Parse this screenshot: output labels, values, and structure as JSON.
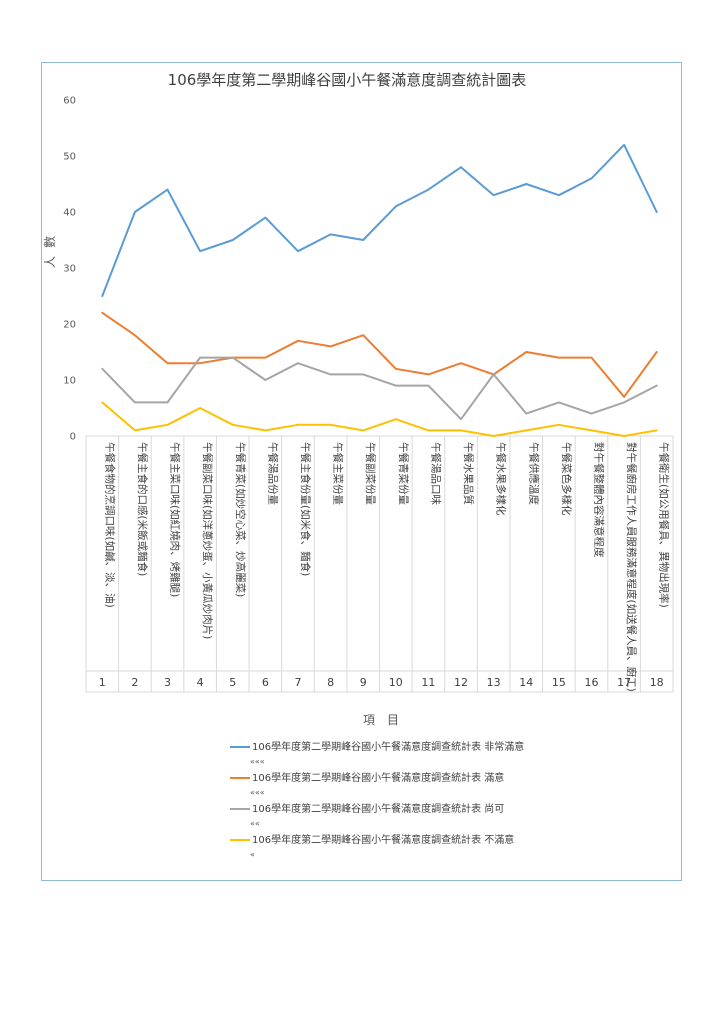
{
  "chart_data": {
    "type": "line",
    "title": "106學年度第二學期峰谷國小午餐滿意度調查統計圖表",
    "ylabel": "人數",
    "xlabel": "項　目",
    "ylim": [
      0,
      60
    ],
    "yticks": [
      0,
      10,
      20,
      30,
      40,
      50,
      60
    ],
    "grid": false,
    "legend_position": "bottom",
    "categories": [
      "1",
      "2",
      "3",
      "4",
      "5",
      "6",
      "7",
      "8",
      "9",
      "10",
      "11",
      "12",
      "13",
      "14",
      "15",
      "16",
      "17",
      "18"
    ],
    "category_labels": [
      "午餐食物的烹調口味(如鹹、淡、油)",
      "午餐主食的口感(米飯或麵食)",
      "午餐主菜口味(如紅燒肉、烤雞腿)",
      "午餐副菜口味(如洋蔥炒蛋、小黃瓜炒肉片)",
      "午餐青菜(如炒空心菜、炒高麗菜)",
      "午餐湯品份量",
      "午餐主食份量(如米食、麵食)",
      "午餐主菜份量",
      "午餐副菜份量",
      "午餐青菜份量",
      "午餐湯品口味",
      "午餐水果品質",
      "午餐水果多樣化",
      "午餐供應溫度",
      "午餐菜色多樣化",
      "對午餐整體內容滿意程度",
      "對午餐廚房工作人員服務滿意程度(如送餐人員、廚工)",
      "午餐衛生(如公用餐具、異物出現率)"
    ],
    "series": [
      {
        "name": "106學年度第二學期峰谷國小午餐滿意度調查統計表 非常滿意",
        "note": "«««",
        "color": "#5b9bd5",
        "values": [
          25,
          40,
          44,
          33,
          35,
          39,
          33,
          36,
          35,
          41,
          44,
          48,
          43,
          45,
          43,
          46,
          52,
          40
        ]
      },
      {
        "name": "106學年度第二學期峰谷國小午餐滿意度調查統計表 滿意",
        "note": "«««",
        "color": "#ed7d31",
        "values": [
          22,
          18,
          13,
          13,
          14,
          14,
          17,
          16,
          18,
          12,
          11,
          13,
          11,
          15,
          14,
          14,
          7,
          15
        ]
      },
      {
        "name": "106學年度第二學期峰谷國小午餐滿意度調查統計表 尚可",
        "note": "««",
        "color": "#a5a5a5",
        "values": [
          12,
          6,
          6,
          14,
          14,
          10,
          13,
          11,
          11,
          9,
          9,
          3,
          11,
          4,
          6,
          4,
          6,
          9
        ]
      },
      {
        "name": "106學年度第二學期峰谷國小午餐滿意度調查統計表 不滿意",
        "note": "«",
        "color": "#ffc000",
        "values": [
          6,
          1,
          2,
          5,
          2,
          1,
          2,
          2,
          1,
          3,
          1,
          1,
          0,
          1,
          2,
          1,
          0,
          1
        ]
      }
    ]
  }
}
